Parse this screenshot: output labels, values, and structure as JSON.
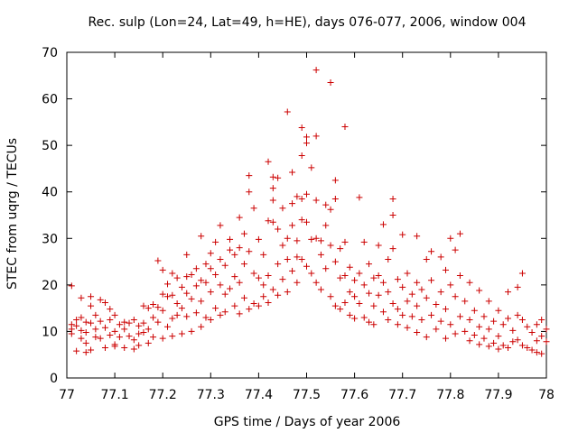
{
  "chart_data": {
    "type": "scatter",
    "title": "Rec. sulp (Lon=24, Lat=49, h=HE), days 076-077, 2006, window 004",
    "xlabel": "GPS time / Days of year 2006",
    "ylabel": "STEC from uqrg / TECUs",
    "xlim": [
      77,
      78
    ],
    "ylim": [
      0,
      70
    ],
    "x_ticks": [
      "77",
      "77.1",
      "77.2",
      "77.3",
      "77.4",
      "77.5",
      "77.6",
      "77.7",
      "77.8",
      "77.9",
      "78"
    ],
    "y_ticks": [
      "0",
      "10",
      "20",
      "30",
      "40",
      "50",
      "60",
      "70"
    ],
    "grid": false,
    "legend": "none",
    "marker": "plus",
    "color": "#cc0000",
    "series": [
      {
        "points": [
          [
            77.01,
            19.8
          ],
          [
            77.01,
            11.5
          ],
          [
            77.01,
            10.5
          ],
          [
            77.01,
            9.5
          ],
          [
            77.02,
            5.8
          ],
          [
            77.02,
            11.2
          ],
          [
            77.02,
            12.5
          ],
          [
            77.03,
            8.5
          ],
          [
            77.03,
            17.2
          ],
          [
            77.03,
            13.0
          ],
          [
            77.03,
            10.2
          ],
          [
            77.04,
            5.5
          ],
          [
            77.04,
            12.0
          ],
          [
            77.04,
            9.8
          ],
          [
            77.04,
            7.5
          ],
          [
            77.05,
            17.5
          ],
          [
            77.05,
            15.5
          ],
          [
            77.05,
            11.8
          ],
          [
            77.05,
            6.0
          ],
          [
            77.06,
            10.5
          ],
          [
            77.06,
            13.5
          ],
          [
            77.06,
            8.8
          ],
          [
            77.07,
            16.8
          ],
          [
            77.07,
            12.2
          ],
          [
            77.07,
            8.5
          ],
          [
            77.08,
            16.2
          ],
          [
            77.08,
            10.8
          ],
          [
            77.08,
            6.5
          ],
          [
            77.09,
            14.8
          ],
          [
            77.09,
            12.5
          ],
          [
            77.09,
            9.2
          ],
          [
            77.1,
            13.5
          ],
          [
            77.1,
            10.0
          ],
          [
            77.1,
            7.2
          ],
          [
            77.1,
            6.8
          ],
          [
            77.11,
            11.5
          ],
          [
            77.11,
            8.8
          ],
          [
            77.12,
            12.0
          ],
          [
            77.12,
            10.5
          ],
          [
            77.12,
            6.5
          ],
          [
            77.13,
            11.8
          ],
          [
            77.13,
            9.0
          ],
          [
            77.14,
            12.5
          ],
          [
            77.14,
            8.2
          ],
          [
            77.14,
            6.2
          ],
          [
            77.15,
            11.2
          ],
          [
            77.15,
            9.5
          ],
          [
            77.15,
            7.0
          ],
          [
            77.16,
            15.5
          ],
          [
            77.16,
            11.8
          ],
          [
            77.16,
            9.8
          ],
          [
            77.17,
            15.0
          ],
          [
            77.17,
            10.5
          ],
          [
            77.17,
            7.5
          ],
          [
            77.18,
            15.8
          ],
          [
            77.18,
            13.0
          ],
          [
            77.18,
            8.8
          ],
          [
            77.19,
            25.2
          ],
          [
            77.19,
            15.2
          ],
          [
            77.19,
            12.0
          ],
          [
            77.2,
            23.2
          ],
          [
            77.2,
            18.0
          ],
          [
            77.2,
            14.5
          ],
          [
            77.2,
            8.5
          ],
          [
            77.21,
            20.2
          ],
          [
            77.21,
            17.5
          ],
          [
            77.21,
            11.0
          ],
          [
            77.22,
            22.5
          ],
          [
            77.22,
            17.8
          ],
          [
            77.22,
            12.8
          ],
          [
            77.22,
            9.0
          ],
          [
            77.23,
            21.5
          ],
          [
            77.23,
            16.0
          ],
          [
            77.23,
            13.5
          ],
          [
            77.24,
            19.5
          ],
          [
            77.24,
            15.0
          ],
          [
            77.24,
            9.5
          ],
          [
            77.25,
            26.5
          ],
          [
            77.25,
            21.8
          ],
          [
            77.25,
            18.2
          ],
          [
            77.25,
            13.2
          ],
          [
            77.26,
            22.2
          ],
          [
            77.26,
            17.0
          ],
          [
            77.26,
            10.0
          ],
          [
            77.27,
            23.5
          ],
          [
            77.27,
            19.8
          ],
          [
            77.27,
            14.0
          ],
          [
            77.28,
            30.5
          ],
          [
            77.28,
            21.0
          ],
          [
            77.28,
            16.5
          ],
          [
            77.28,
            11.0
          ],
          [
            77.29,
            24.5
          ],
          [
            77.29,
            20.5
          ],
          [
            77.29,
            13.0
          ],
          [
            77.3,
            26.8
          ],
          [
            77.3,
            23.5
          ],
          [
            77.3,
            18.5
          ],
          [
            77.3,
            12.5
          ],
          [
            77.31,
            29.2
          ],
          [
            77.31,
            22.2
          ],
          [
            77.31,
            15.0
          ],
          [
            77.32,
            32.8
          ],
          [
            77.32,
            25.5
          ],
          [
            77.32,
            20.0
          ],
          [
            77.32,
            13.5
          ],
          [
            77.33,
            24.2
          ],
          [
            77.33,
            18.0
          ],
          [
            77.33,
            14.2
          ],
          [
            77.34,
            29.8
          ],
          [
            77.34,
            27.5
          ],
          [
            77.34,
            19.2
          ],
          [
            77.35,
            26.5
          ],
          [
            77.35,
            21.8
          ],
          [
            77.35,
            15.5
          ],
          [
            77.36,
            34.5
          ],
          [
            77.36,
            28.0
          ],
          [
            77.36,
            20.5
          ],
          [
            77.36,
            13.8
          ],
          [
            77.37,
            31.0
          ],
          [
            77.37,
            24.5
          ],
          [
            77.37,
            17.2
          ],
          [
            77.38,
            43.5
          ],
          [
            77.38,
            40.0
          ],
          [
            77.38,
            27.2
          ],
          [
            77.38,
            14.8
          ],
          [
            77.39,
            36.5
          ],
          [
            77.39,
            22.5
          ],
          [
            77.39,
            16.0
          ],
          [
            77.4,
            29.8
          ],
          [
            77.4,
            21.5
          ],
          [
            77.4,
            15.5
          ],
          [
            77.41,
            26.5
          ],
          [
            77.41,
            20.0
          ],
          [
            77.41,
            17.5
          ],
          [
            77.42,
            46.5
          ],
          [
            77.42,
            33.8
          ],
          [
            77.42,
            22.0
          ],
          [
            77.42,
            16.2
          ],
          [
            77.43,
            43.2
          ],
          [
            77.43,
            40.8
          ],
          [
            77.43,
            38.2
          ],
          [
            77.43,
            33.5
          ],
          [
            77.43,
            19.0
          ],
          [
            77.44,
            43.0
          ],
          [
            77.44,
            32.0
          ],
          [
            77.44,
            24.5
          ],
          [
            77.44,
            17.8
          ],
          [
            77.45,
            36.5
          ],
          [
            77.45,
            28.5
          ],
          [
            77.45,
            21.2
          ],
          [
            77.46,
            57.2
          ],
          [
            77.46,
            30.0
          ],
          [
            77.46,
            25.5
          ],
          [
            77.46,
            18.5
          ],
          [
            77.47,
            44.2
          ],
          [
            77.47,
            37.5
          ],
          [
            77.47,
            32.8
          ],
          [
            77.47,
            23.0
          ],
          [
            77.48,
            39.0
          ],
          [
            77.48,
            29.5
          ],
          [
            77.48,
            26.0
          ],
          [
            77.48,
            20.5
          ],
          [
            77.49,
            53.8
          ],
          [
            77.49,
            47.8
          ],
          [
            77.49,
            38.5
          ],
          [
            77.49,
            34.0
          ],
          [
            77.49,
            25.5
          ],
          [
            77.5,
            51.8
          ],
          [
            77.5,
            50.5
          ],
          [
            77.5,
            39.5
          ],
          [
            77.5,
            33.5
          ],
          [
            77.5,
            24.0
          ],
          [
            77.51,
            45.2
          ],
          [
            77.51,
            29.8
          ],
          [
            77.51,
            22.5
          ],
          [
            77.52,
            66.2
          ],
          [
            77.52,
            52.0
          ],
          [
            77.52,
            38.2
          ],
          [
            77.52,
            30.0
          ],
          [
            77.52,
            20.5
          ],
          [
            77.53,
            29.5
          ],
          [
            77.53,
            26.5
          ],
          [
            77.53,
            19.0
          ],
          [
            77.54,
            37.2
          ],
          [
            77.54,
            32.8
          ],
          [
            77.54,
            23.5
          ],
          [
            77.55,
            63.5
          ],
          [
            77.55,
            36.2
          ],
          [
            77.55,
            28.5
          ],
          [
            77.55,
            17.5
          ],
          [
            77.56,
            42.5
          ],
          [
            77.56,
            38.5
          ],
          [
            77.56,
            25.0
          ],
          [
            77.56,
            15.5
          ],
          [
            77.57,
            27.8
          ],
          [
            77.57,
            21.5
          ],
          [
            77.57,
            14.8
          ],
          [
            77.58,
            54.0
          ],
          [
            77.58,
            29.2
          ],
          [
            77.58,
            22.0
          ],
          [
            77.58,
            16.2
          ],
          [
            77.59,
            23.8
          ],
          [
            77.59,
            18.5
          ],
          [
            77.59,
            13.5
          ],
          [
            77.6,
            21.0
          ],
          [
            77.6,
            17.5
          ],
          [
            77.6,
            12.8
          ],
          [
            77.61,
            38.8
          ],
          [
            77.61,
            22.5
          ],
          [
            77.61,
            16.0
          ],
          [
            77.62,
            29.2
          ],
          [
            77.62,
            20.0
          ],
          [
            77.62,
            13.0
          ],
          [
            77.63,
            24.5
          ],
          [
            77.63,
            18.2
          ],
          [
            77.63,
            12.0
          ],
          [
            77.64,
            21.5
          ],
          [
            77.64,
            15.5
          ],
          [
            77.64,
            11.5
          ],
          [
            77.65,
            28.5
          ],
          [
            77.65,
            22.0
          ],
          [
            77.65,
            17.8
          ],
          [
            77.66,
            33.0
          ],
          [
            77.66,
            20.5
          ],
          [
            77.66,
            14.2
          ],
          [
            77.67,
            25.5
          ],
          [
            77.67,
            18.5
          ],
          [
            77.67,
            12.5
          ],
          [
            77.68,
            38.5
          ],
          [
            77.68,
            35.0
          ],
          [
            77.68,
            27.8
          ],
          [
            77.68,
            16.0
          ],
          [
            77.69,
            21.2
          ],
          [
            77.69,
            14.8
          ],
          [
            77.69,
            11.5
          ],
          [
            77.7,
            30.8
          ],
          [
            77.7,
            19.5
          ],
          [
            77.7,
            13.5
          ],
          [
            77.71,
            22.5
          ],
          [
            77.71,
            16.5
          ],
          [
            77.71,
            10.8
          ],
          [
            77.72,
            18.0
          ],
          [
            77.72,
            13.2
          ],
          [
            77.73,
            30.5
          ],
          [
            77.73,
            20.5
          ],
          [
            77.73,
            15.5
          ],
          [
            77.73,
            9.8
          ],
          [
            77.74,
            19.0
          ],
          [
            77.74,
            12.5
          ],
          [
            77.75,
            25.5
          ],
          [
            77.75,
            17.2
          ],
          [
            77.75,
            8.8
          ],
          [
            77.76,
            27.2
          ],
          [
            77.76,
            21.0
          ],
          [
            77.76,
            13.5
          ],
          [
            77.77,
            15.8
          ],
          [
            77.77,
            10.5
          ],
          [
            77.78,
            26.0
          ],
          [
            77.78,
            18.5
          ],
          [
            77.78,
            12.2
          ],
          [
            77.79,
            23.2
          ],
          [
            77.79,
            14.8
          ],
          [
            77.79,
            8.5
          ],
          [
            77.8,
            30.0
          ],
          [
            77.8,
            20.0
          ],
          [
            77.8,
            11.5
          ],
          [
            77.81,
            27.5
          ],
          [
            77.81,
            17.5
          ],
          [
            77.81,
            9.5
          ],
          [
            77.82,
            31.0
          ],
          [
            77.82,
            22.0
          ],
          [
            77.82,
            13.2
          ],
          [
            77.83,
            16.5
          ],
          [
            77.83,
            10.0
          ],
          [
            77.84,
            20.5
          ],
          [
            77.84,
            12.5
          ],
          [
            77.84,
            8.0
          ],
          [
            77.85,
            14.5
          ],
          [
            77.85,
            9.2
          ],
          [
            77.86,
            18.8
          ],
          [
            77.86,
            11.0
          ],
          [
            77.86,
            7.2
          ],
          [
            77.87,
            13.2
          ],
          [
            77.87,
            8.5
          ],
          [
            77.88,
            16.5
          ],
          [
            77.88,
            10.5
          ],
          [
            77.88,
            6.8
          ],
          [
            77.89,
            12.2
          ],
          [
            77.89,
            7.5
          ],
          [
            77.9,
            14.5
          ],
          [
            77.9,
            9.0
          ],
          [
            77.9,
            6.2
          ],
          [
            77.91,
            11.5
          ],
          [
            77.91,
            7.0
          ],
          [
            77.92,
            18.5
          ],
          [
            77.92,
            12.8
          ],
          [
            77.92,
            6.5
          ],
          [
            77.93,
            10.2
          ],
          [
            77.93,
            7.8
          ],
          [
            77.94,
            19.5
          ],
          [
            77.94,
            13.5
          ],
          [
            77.94,
            8.2
          ],
          [
            77.95,
            22.5
          ],
          [
            77.95,
            12.5
          ],
          [
            77.95,
            7.0
          ],
          [
            77.96,
            11.0
          ],
          [
            77.96,
            6.5
          ],
          [
            77.97,
            9.8
          ],
          [
            77.97,
            6.0
          ],
          [
            77.98,
            11.5
          ],
          [
            77.98,
            8.0
          ],
          [
            77.98,
            5.5
          ],
          [
            77.99,
            12.5
          ],
          [
            77.99,
            9.0
          ],
          [
            77.99,
            5.2
          ],
          [
            78.0,
            10.5
          ],
          [
            78.0,
            7.8
          ]
        ]
      }
    ]
  }
}
